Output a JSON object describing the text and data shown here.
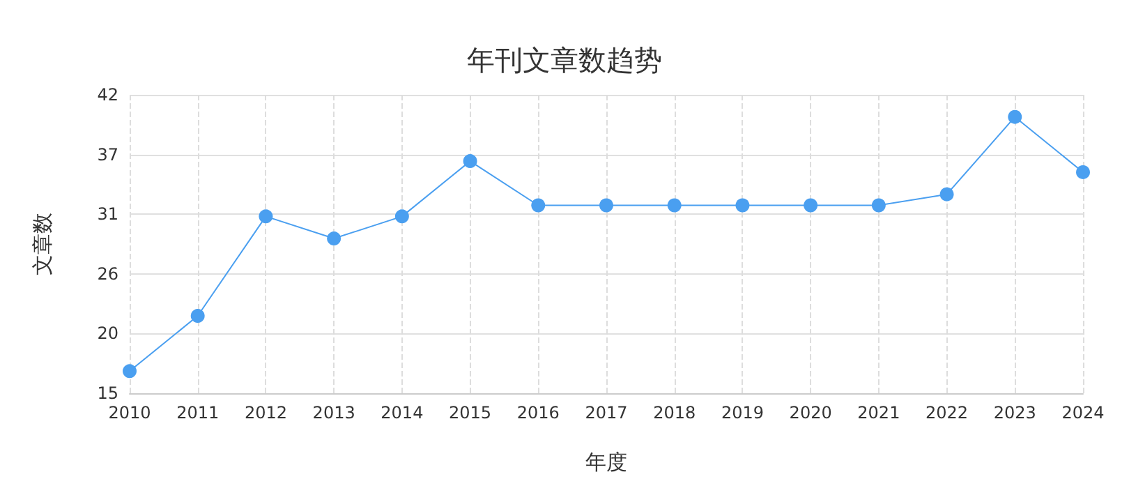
{
  "chart_data": {
    "type": "line",
    "title": "年刊文章数趋势",
    "xlabel": "年度",
    "ylabel": "文章数",
    "categories": [
      "2010",
      "2011",
      "2012",
      "2013",
      "2014",
      "2015",
      "2016",
      "2017",
      "2018",
      "2019",
      "2020",
      "2021",
      "2022",
      "2023",
      "2024"
    ],
    "series": [
      {
        "color": "#4a9ff0",
        "values": [
          17,
          22,
          31,
          29,
          31,
          36,
          32,
          32,
          32,
          32,
          32,
          32,
          33,
          40,
          35
        ]
      }
    ],
    "ylim": [
      15,
      42
    ],
    "yticks": [
      15,
      {
        "value": 20.4,
        "label": "20"
      },
      {
        "value": 25.8,
        "label": "26"
      },
      {
        "value": 31.2,
        "label": "31"
      },
      {
        "value": 36.6,
        "label": "37"
      },
      42
    ],
    "grid": true,
    "marker": "circle",
    "line_style": "solid"
  }
}
